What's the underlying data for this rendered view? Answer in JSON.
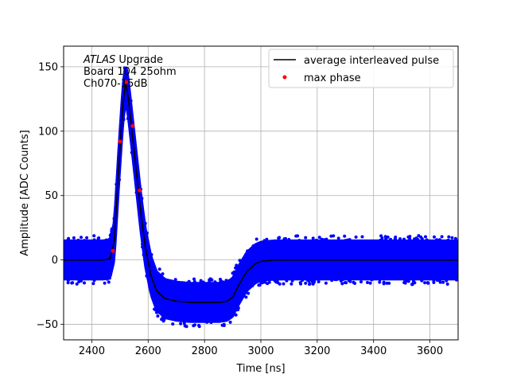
{
  "chart_data": {
    "type": "scatter",
    "xlabel": "Time [ns]",
    "ylabel": "Amplitude [ADC Counts]",
    "xlim": [
      2300,
      3700
    ],
    "ylim": [
      -62,
      166
    ],
    "xticks": [
      2400,
      2600,
      2800,
      3000,
      3200,
      3400,
      3600
    ],
    "yticks": [
      -50,
      0,
      50,
      100,
      150
    ],
    "grid": true,
    "legend_position": "top-right",
    "annotation": {
      "italic": "ATLAS",
      "rest": " Upgrade",
      "line2": " Board 104 25ohm",
      "line3": " Ch070-15dB"
    },
    "series": [
      {
        "name": "average interleaved pulse",
        "style": "line",
        "color": "#000000",
        "x": [
          2300,
          2440,
          2465,
          2480,
          2495,
          2510,
          2520,
          2530,
          2545,
          2560,
          2575,
          2590,
          2610,
          2630,
          2660,
          2700,
          2750,
          2800,
          2850,
          2880,
          2900,
          2920,
          2950,
          2980,
          3000,
          3050,
          3100,
          3400,
          3700
        ],
        "y": [
          0,
          0,
          1,
          15,
          70,
          120,
          138,
          125,
          95,
          65,
          35,
          10,
          -12,
          -24,
          -30,
          -32,
          -33,
          -33,
          -33,
          -32,
          -29,
          -20,
          -9,
          -3,
          -1,
          0,
          0,
          0,
          0
        ]
      },
      {
        "name": "max phase",
        "style": "points",
        "color": "#ff0000",
        "x": [
          2475,
          2500,
          2522,
          2545,
          2570
        ],
        "y": [
          7,
          92,
          138,
          104,
          54
        ]
      }
    ],
    "noise_band": {
      "color": "#0000ff",
      "description_spread": 15
    }
  }
}
